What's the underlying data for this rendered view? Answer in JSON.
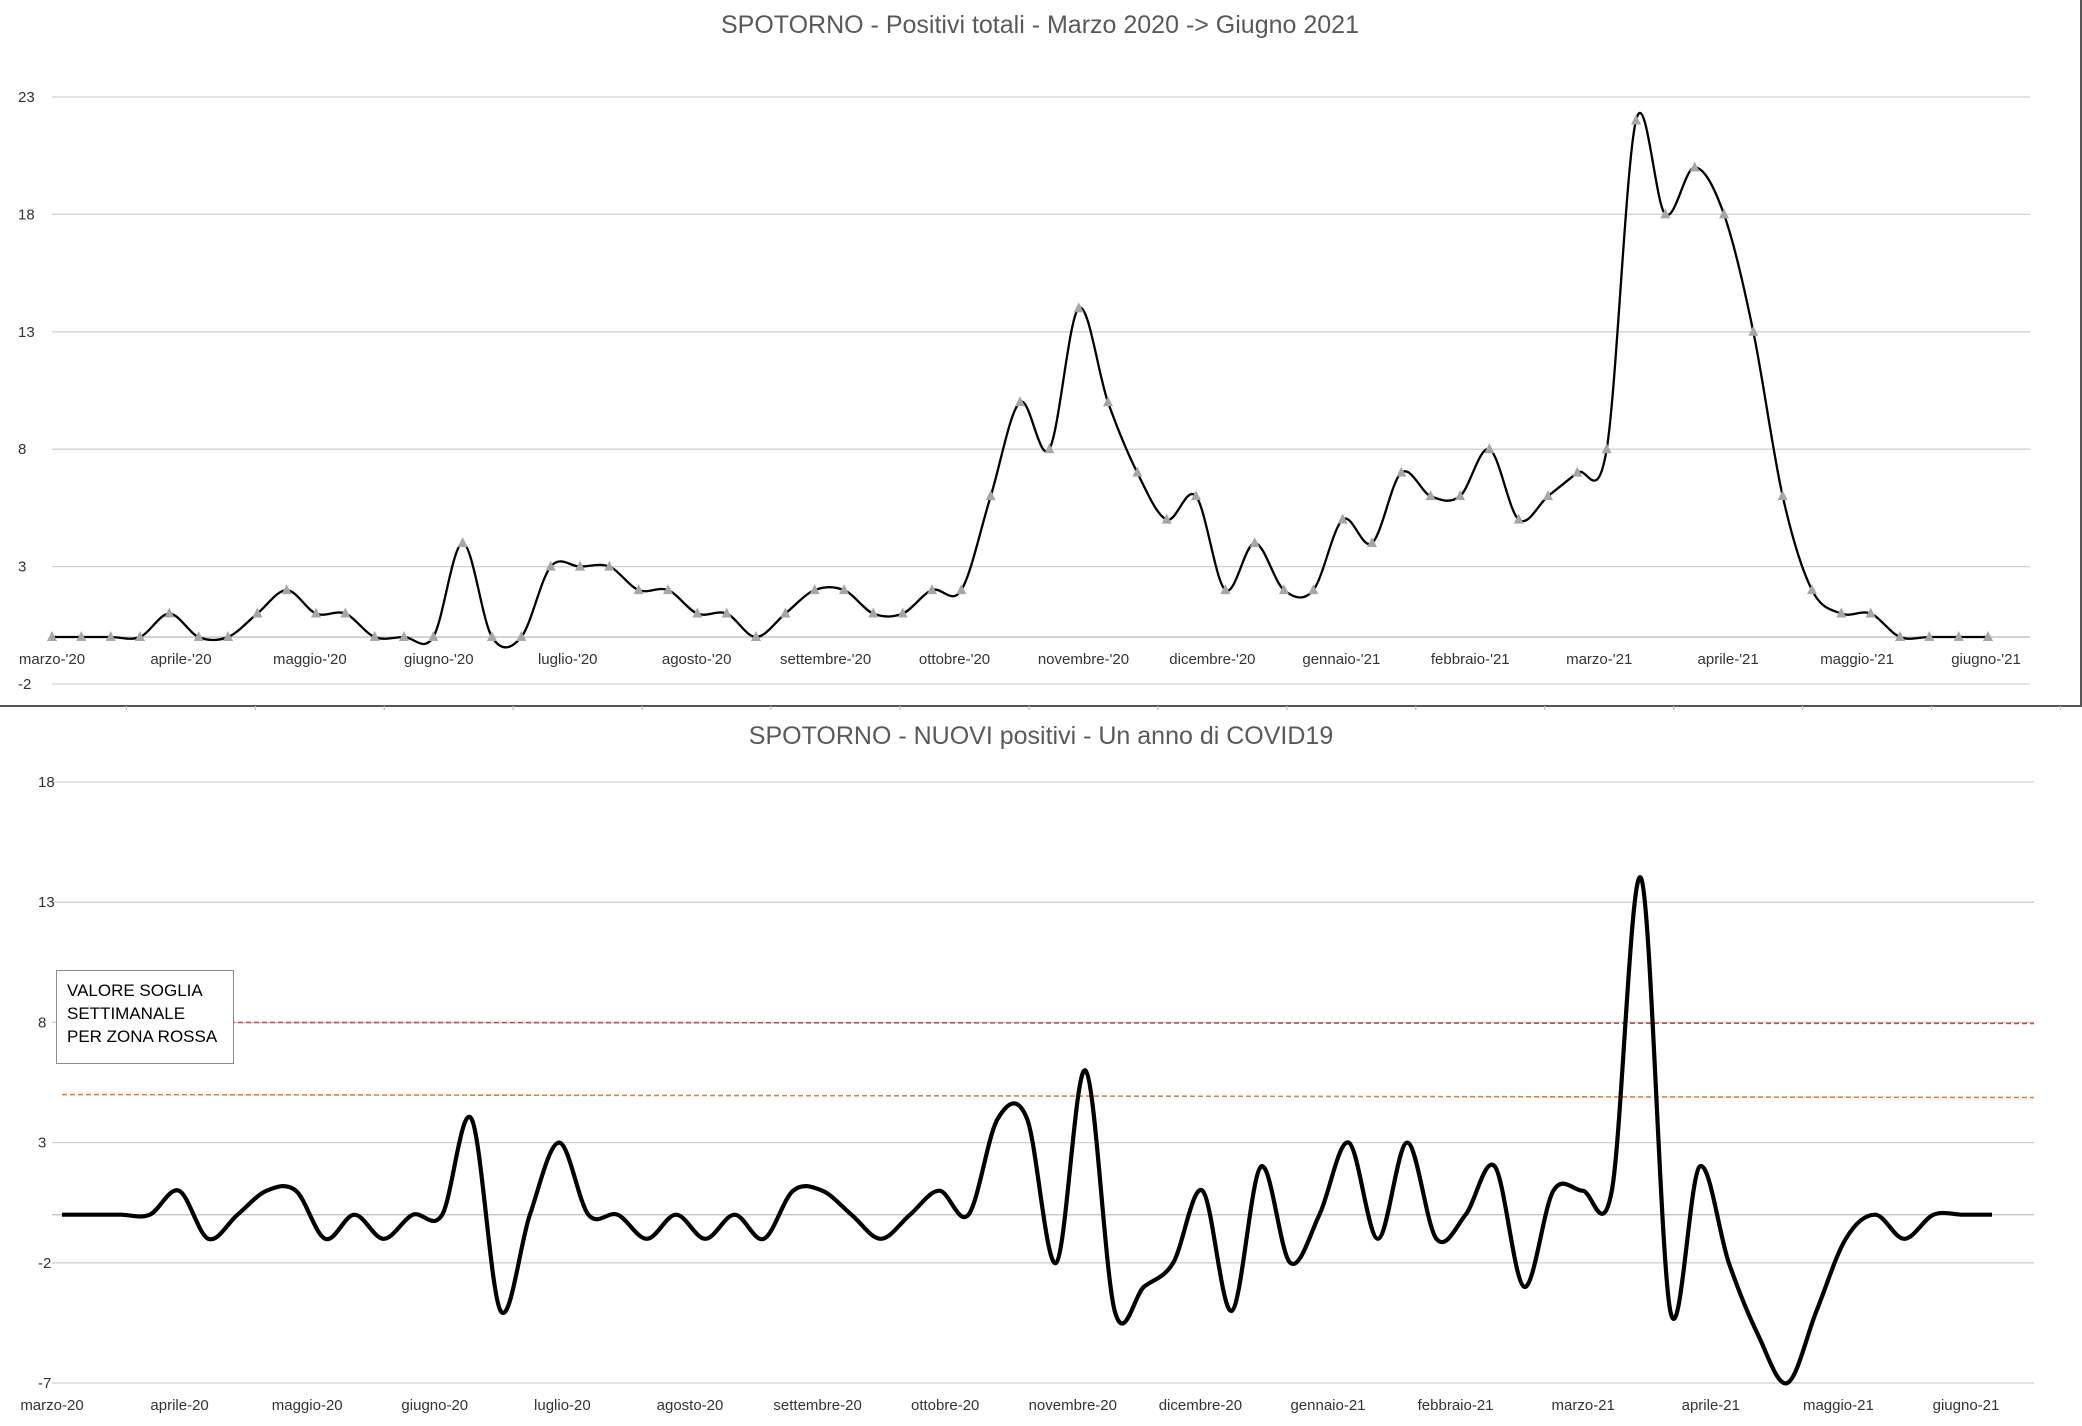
{
  "chart_data": [
    {
      "type": "line",
      "title": "SPOTORNO - Positivi totali - Marzo 2020 -> Giugno 2021",
      "xlabel": "",
      "ylabel": "",
      "yticks": [
        "23",
        "18",
        "13",
        "8",
        "3",
        "-2"
      ],
      "ytick_values": [
        23,
        18,
        13,
        8,
        3,
        -2
      ],
      "ylim": [
        -2,
        23
      ],
      "xticks": [
        "marzo-'20",
        "aprile-'20",
        "maggio-'20",
        "giugno-'20",
        "luglio-'20",
        "agosto-'20",
        "settembre-'20",
        "ottobre-'20",
        "novembre-'20",
        "dicembre-'20",
        "gennaio-'21",
        "febbraio-'21",
        "marzo-'21",
        "aprile-'21",
        "maggio-'21",
        "giugno-'21"
      ],
      "grid": true,
      "marker": "triangle",
      "marker_color": "#a6a6a6",
      "line_color": "#000000",
      "series": [
        {
          "values": [
            0,
            0,
            0,
            0,
            1,
            0,
            0,
            1,
            2,
            1,
            1,
            0,
            0,
            0,
            4,
            0,
            0,
            3,
            3,
            3,
            2,
            2,
            1,
            1,
            0,
            1,
            2,
            2,
            1,
            1,
            2,
            2,
            6,
            10,
            8,
            14,
            10,
            7,
            5,
            6,
            2,
            4,
            2,
            2,
            5,
            4,
            7,
            6,
            6,
            8,
            5,
            6,
            7,
            8,
            22,
            18,
            20,
            18,
            13,
            6,
            2,
            1,
            1,
            0,
            0,
            0,
            0
          ]
        }
      ]
    },
    {
      "type": "line",
      "title": "SPOTORNO - NUOVI positivi - Un anno di COVID19",
      "xlabel": "",
      "ylabel": "",
      "yticks": [
        "18",
        "13",
        "8",
        "3",
        "-2",
        "-7"
      ],
      "ytick_values": [
        18,
        13,
        8,
        3,
        -2,
        -7
      ],
      "ylim": [
        -7,
        18
      ],
      "xticks": [
        "marzo-20",
        "aprile-20",
        "maggio-20",
        "giugno-20",
        "luglio-20",
        "agosto-20",
        "settembre-20",
        "ottobre-20",
        "novembre-20",
        "dicembre-20",
        "gennaio-21",
        "febbraio-21",
        "marzo-21",
        "aprile-21",
        "maggio-21",
        "giugno-21"
      ],
      "grid": true,
      "line_color": "#000000",
      "series": [
        {
          "values": [
            0,
            0,
            0,
            0,
            1,
            -1,
            0,
            1,
            1,
            -1,
            0,
            -1,
            0,
            0,
            4,
            -4,
            0,
            3,
            0,
            0,
            -1,
            0,
            -1,
            0,
            -1,
            1,
            1,
            0,
            -1,
            0,
            1,
            0,
            4,
            4,
            -2,
            6,
            -4,
            -3,
            -2,
            1,
            -4,
            2,
            -2,
            0,
            3,
            -1,
            3,
            -1,
            0,
            2,
            -3,
            1,
            1,
            1,
            14,
            -4,
            2,
            -2,
            -5,
            -7,
            -4,
            -1,
            0,
            -1,
            0,
            0,
            0
          ]
        }
      ],
      "reference_lines": [
        {
          "value": 8,
          "color": "#c0504d",
          "style": "dashed"
        },
        {
          "value": 5,
          "color": "#ed7d31",
          "style": "dashed"
        }
      ],
      "annotation": "VALORE SOGLIA SETTIMANALE PER ZONA ROSSA"
    }
  ]
}
